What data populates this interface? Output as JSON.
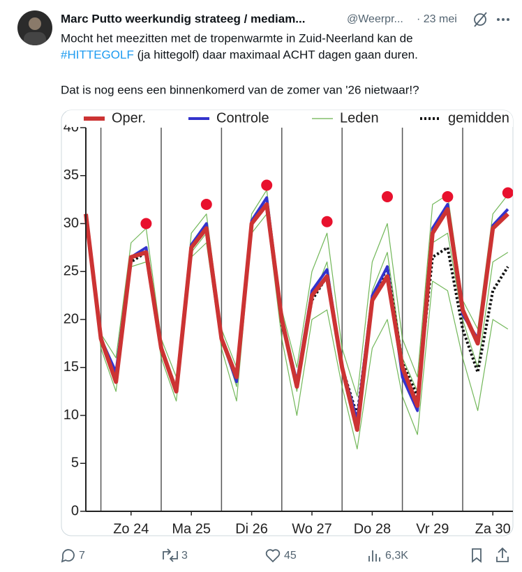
{
  "post": {
    "author": "Marc Putto weerkundig strateeg / mediam...",
    "handle": "@Weerpr...",
    "date": "· 23 mei",
    "text_line1": "Mocht het meezitten met de tropenwarmte in Zuid-Neerland kan de",
    "hashtag": "#HITTEGOLF",
    "text_line2_rest": " (ja hittegolf) daar maximaal ACHT dagen gaan duren.",
    "text_line3": "Dat is nog eens een binnenkomerd van de zomer van '26 nietwaar!?",
    "replies": "7",
    "reposts": "3",
    "likes": "45",
    "views": "6,3K"
  },
  "chart_data": {
    "type": "line",
    "x": [
      0,
      6,
      12,
      18,
      24,
      30,
      36,
      42,
      48,
      54,
      60,
      66,
      72,
      78,
      84,
      90,
      96,
      102,
      108,
      114,
      120,
      126,
      132,
      138,
      144,
      150,
      156,
      162,
      168
    ],
    "xlim": [
      0,
      168
    ],
    "xticks": [
      {
        "value": 18,
        "label": "Zo 24"
      },
      {
        "value": 42,
        "label": "Ma 25"
      },
      {
        "value": 66,
        "label": "Di 26"
      },
      {
        "value": 90,
        "label": "Wo 27"
      },
      {
        "value": 114,
        "label": "Do 28"
      },
      {
        "value": 138,
        "label": "Vr 29"
      },
      {
        "value": 162,
        "label": "Za 30"
      }
    ],
    "day_lines": [
      6,
      30,
      54,
      78,
      102,
      126,
      150
    ],
    "ylim": [
      0,
      40
    ],
    "yticks": [
      0,
      5,
      10,
      15,
      20,
      25,
      30,
      35,
      40
    ],
    "members": {
      "name": "Leden",
      "color": "#4fa52f",
      "series": [
        [
          31,
          18.5,
          16,
          28,
          29.5,
          18,
          14,
          29,
          31,
          19,
          15,
          31,
          33.5,
          21,
          15,
          25,
          29,
          17,
          12,
          26,
          30,
          18,
          14,
          32,
          33,
          22,
          19,
          31,
          33
        ],
        [
          30,
          17,
          12.5,
          25.5,
          26,
          16,
          11.5,
          26.5,
          28,
          17,
          11.5,
          29,
          31,
          18,
          10,
          20,
          21,
          13,
          6.5,
          17,
          20,
          12,
          8,
          24,
          23,
          16,
          10.5,
          20,
          19
        ],
        [
          30.5,
          17.5,
          14,
          26.5,
          27.5,
          17,
          13,
          27,
          29,
          18,
          13,
          30,
          32,
          19.5,
          12.5,
          22,
          26,
          15,
          9,
          23,
          27,
          16,
          12.5,
          28,
          29,
          20,
          15,
          26,
          27
        ]
      ]
    },
    "series": [
      {
        "name": "gemidden",
        "color": "#111111",
        "style": "dotted",
        "values": [
          31,
          18,
          14,
          26,
          27,
          17,
          12.8,
          27.5,
          29.5,
          18,
          13.8,
          30,
          32,
          19.5,
          13.5,
          22,
          24.5,
          15,
          10,
          22,
          25.5,
          15.5,
          12,
          26.5,
          27.5,
          19,
          14.5,
          23,
          25.5
        ]
      },
      {
        "name": "Controle",
        "color": "#3333cc",
        "style": "solid",
        "values": [
          31,
          18,
          14.5,
          26.5,
          27.5,
          17,
          12.5,
          27.8,
          30,
          18,
          13.5,
          30.3,
          32.7,
          20,
          13.5,
          23,
          25.2,
          15,
          9.5,
          22.5,
          25.5,
          14,
          10.5,
          29.5,
          32,
          20.5,
          18,
          29.8,
          31.5
        ]
      },
      {
        "name": "Oper.",
        "color": "#cc3333",
        "style": "thick",
        "values": [
          31,
          18,
          13.5,
          26.5,
          27,
          17,
          12.5,
          27.5,
          29.5,
          18,
          14,
          30,
          32,
          20,
          13,
          22.5,
          24.5,
          15,
          8.5,
          22,
          24.5,
          15,
          11,
          29,
          31.5,
          21,
          17.5,
          29.5,
          31
        ]
      }
    ],
    "markers": {
      "color": "#e8112d",
      "x": [
        24,
        48,
        72,
        96,
        120,
        144,
        168
      ],
      "values": [
        30,
        32,
        34,
        30.2,
        32.8,
        32.8,
        33.2
      ]
    },
    "legend_order": [
      2,
      1,
      "members",
      0
    ]
  }
}
